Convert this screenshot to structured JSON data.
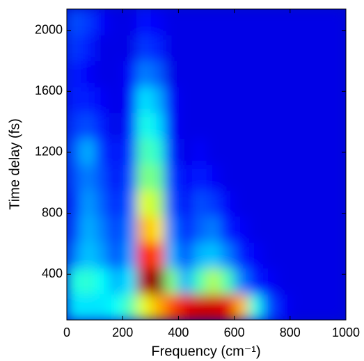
{
  "chart_data": {
    "type": "heatmap",
    "xlabel": "Frequency (cm⁻¹)",
    "ylabel": "Time delay (fs)",
    "xlim": [
      0,
      1000
    ],
    "ylim": [
      100,
      2140
    ],
    "xticks": [
      0,
      200,
      400,
      600,
      800,
      1000
    ],
    "yticks": [
      400,
      800,
      1200,
      1600,
      2000
    ],
    "colormap": "jet",
    "xbins": [
      0,
      50,
      100,
      150,
      200,
      250,
      300,
      350,
      400,
      450,
      500,
      550,
      600,
      650,
      700,
      750,
      800,
      850,
      900,
      950,
      1000
    ],
    "ybins": [
      100,
      270,
      440,
      610,
      780,
      950,
      1120,
      1290,
      1460,
      1630,
      1800,
      1970,
      2140
    ],
    "z": [
      [
        0.35,
        0.35,
        0.35,
        0.38,
        0.45,
        0.6,
        0.7,
        0.8,
        0.9,
        0.92,
        0.92,
        0.9,
        0.7,
        0.4,
        0.2,
        0.12,
        0.1,
        0.1,
        0.1,
        0.1
      ],
      [
        0.4,
        0.42,
        0.38,
        0.3,
        0.35,
        0.95,
        1.0,
        0.5,
        0.3,
        0.45,
        0.55,
        0.45,
        0.25,
        0.15,
        0.12,
        0.1,
        0.1,
        0.1,
        0.1,
        0.1
      ],
      [
        0.25,
        0.32,
        0.28,
        0.2,
        0.28,
        0.85,
        0.8,
        0.3,
        0.2,
        0.3,
        0.32,
        0.25,
        0.15,
        0.12,
        0.1,
        0.1,
        0.1,
        0.1,
        0.1,
        0.1
      ],
      [
        0.2,
        0.3,
        0.25,
        0.18,
        0.25,
        0.7,
        0.65,
        0.25,
        0.15,
        0.22,
        0.25,
        0.15,
        0.12,
        0.1,
        0.1,
        0.1,
        0.1,
        0.1,
        0.1,
        0.1
      ],
      [
        0.18,
        0.28,
        0.22,
        0.15,
        0.22,
        0.6,
        0.55,
        0.2,
        0.12,
        0.2,
        0.18,
        0.12,
        0.1,
        0.1,
        0.1,
        0.1,
        0.1,
        0.1,
        0.1,
        0.1
      ],
      [
        0.2,
        0.25,
        0.2,
        0.12,
        0.2,
        0.5,
        0.48,
        0.18,
        0.12,
        0.15,
        0.12,
        0.1,
        0.1,
        0.1,
        0.1,
        0.1,
        0.1,
        0.1,
        0.1,
        0.1
      ],
      [
        0.22,
        0.3,
        0.18,
        0.12,
        0.18,
        0.45,
        0.42,
        0.15,
        0.1,
        0.12,
        0.1,
        0.1,
        0.1,
        0.1,
        0.1,
        0.1,
        0.1,
        0.1,
        0.1,
        0.1
      ],
      [
        0.18,
        0.2,
        0.15,
        0.1,
        0.15,
        0.4,
        0.35,
        0.12,
        0.1,
        0.1,
        0.1,
        0.1,
        0.1,
        0.1,
        0.1,
        0.1,
        0.1,
        0.1,
        0.1,
        0.1
      ],
      [
        0.15,
        0.15,
        0.12,
        0.1,
        0.12,
        0.35,
        0.3,
        0.12,
        0.1,
        0.1,
        0.1,
        0.1,
        0.1,
        0.1,
        0.1,
        0.1,
        0.1,
        0.1,
        0.1,
        0.1
      ],
      [
        0.15,
        0.12,
        0.1,
        0.1,
        0.12,
        0.25,
        0.22,
        0.1,
        0.1,
        0.1,
        0.1,
        0.1,
        0.1,
        0.1,
        0.1,
        0.1,
        0.1,
        0.1,
        0.1,
        0.1
      ],
      [
        0.18,
        0.15,
        0.1,
        0.1,
        0.1,
        0.18,
        0.16,
        0.1,
        0.1,
        0.1,
        0.1,
        0.1,
        0.1,
        0.1,
        0.1,
        0.1,
        0.1,
        0.1,
        0.1,
        0.1
      ],
      [
        0.2,
        0.18,
        0.12,
        0.1,
        0.1,
        0.14,
        0.12,
        0.1,
        0.1,
        0.1,
        0.1,
        0.1,
        0.1,
        0.1,
        0.1,
        0.1,
        0.1,
        0.1,
        0.1,
        0.1
      ]
    ]
  }
}
